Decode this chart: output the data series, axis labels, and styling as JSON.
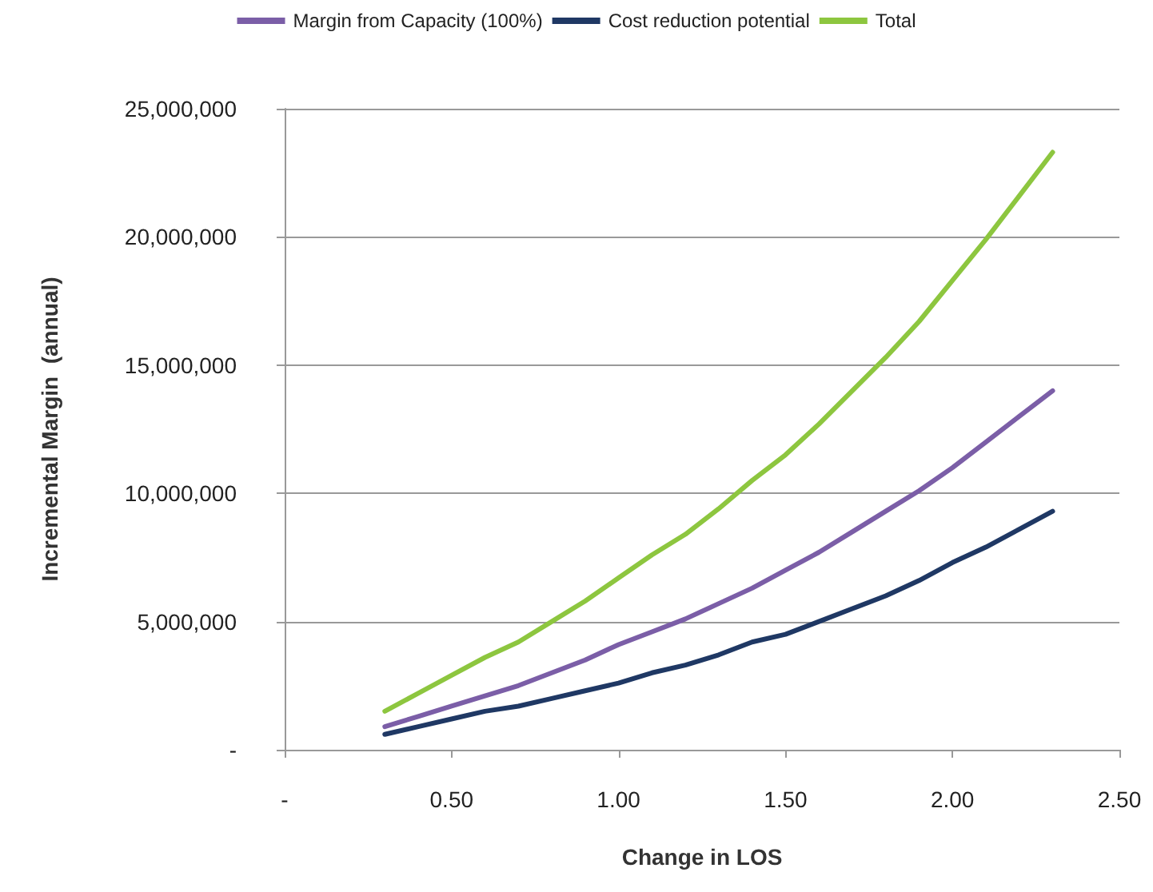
{
  "chart_data": {
    "type": "line",
    "xlabel": "Change in LOS",
    "ylabel": "Incremental Margin  (annual)",
    "x": [
      0.3,
      0.4,
      0.5,
      0.6,
      0.7,
      0.8,
      0.9,
      1.0,
      1.1,
      1.2,
      1.3,
      1.4,
      1.5,
      1.6,
      1.7,
      1.8,
      1.9,
      2.0,
      2.1,
      2.2,
      2.3
    ],
    "series": [
      {
        "name": "Margin from Capacity (100%)",
        "color": "#7b5ea7",
        "values": [
          900000,
          1300000,
          1700000,
          2100000,
          2500000,
          3000000,
          3500000,
          4100000,
          4600000,
          5100000,
          5700000,
          6300000,
          7000000,
          7700000,
          8500000,
          9300000,
          10100000,
          11000000,
          12000000,
          13000000,
          14000000
        ]
      },
      {
        "name": "Cost reduction potential",
        "color": "#1f3864",
        "values": [
          600000,
          900000,
          1200000,
          1500000,
          1700000,
          2000000,
          2300000,
          2600000,
          3000000,
          3300000,
          3700000,
          4200000,
          4500000,
          5000000,
          5500000,
          6000000,
          6600000,
          7300000,
          7900000,
          8600000,
          9300000
        ]
      },
      {
        "name": "Total",
        "color": "#8dc63f",
        "values": [
          1500000,
          2200000,
          2900000,
          3600000,
          4200000,
          5000000,
          5800000,
          6700000,
          7600000,
          8400000,
          9400000,
          10500000,
          11500000,
          12700000,
          14000000,
          15300000,
          16700000,
          18300000,
          19900000,
          21600000,
          23300000
        ]
      }
    ],
    "xlim": [
      0,
      2.5
    ],
    "xticks": [
      {
        "value": 0,
        "label": "-"
      },
      {
        "value": 0.5,
        "label": "0.50"
      },
      {
        "value": 1,
        "label": "1.00"
      },
      {
        "value": 1.5,
        "label": "1.50"
      },
      {
        "value": 2,
        "label": "2.00"
      },
      {
        "value": 2.5,
        "label": "2.50"
      }
    ],
    "ylim": [
      0,
      25000000
    ],
    "yticks": [
      {
        "value": 0,
        "label": "-"
      },
      {
        "value": 5000000,
        "label": "5,000,000"
      },
      {
        "value": 10000000,
        "label": "10,000,000"
      },
      {
        "value": 15000000,
        "label": "15,000,000"
      },
      {
        "value": 20000000,
        "label": "20,000,000"
      },
      {
        "value": 25000000,
        "label": "25,000,000"
      }
    ],
    "grid": "y",
    "legend": "top",
    "marker": "none",
    "line_style": "solid"
  }
}
